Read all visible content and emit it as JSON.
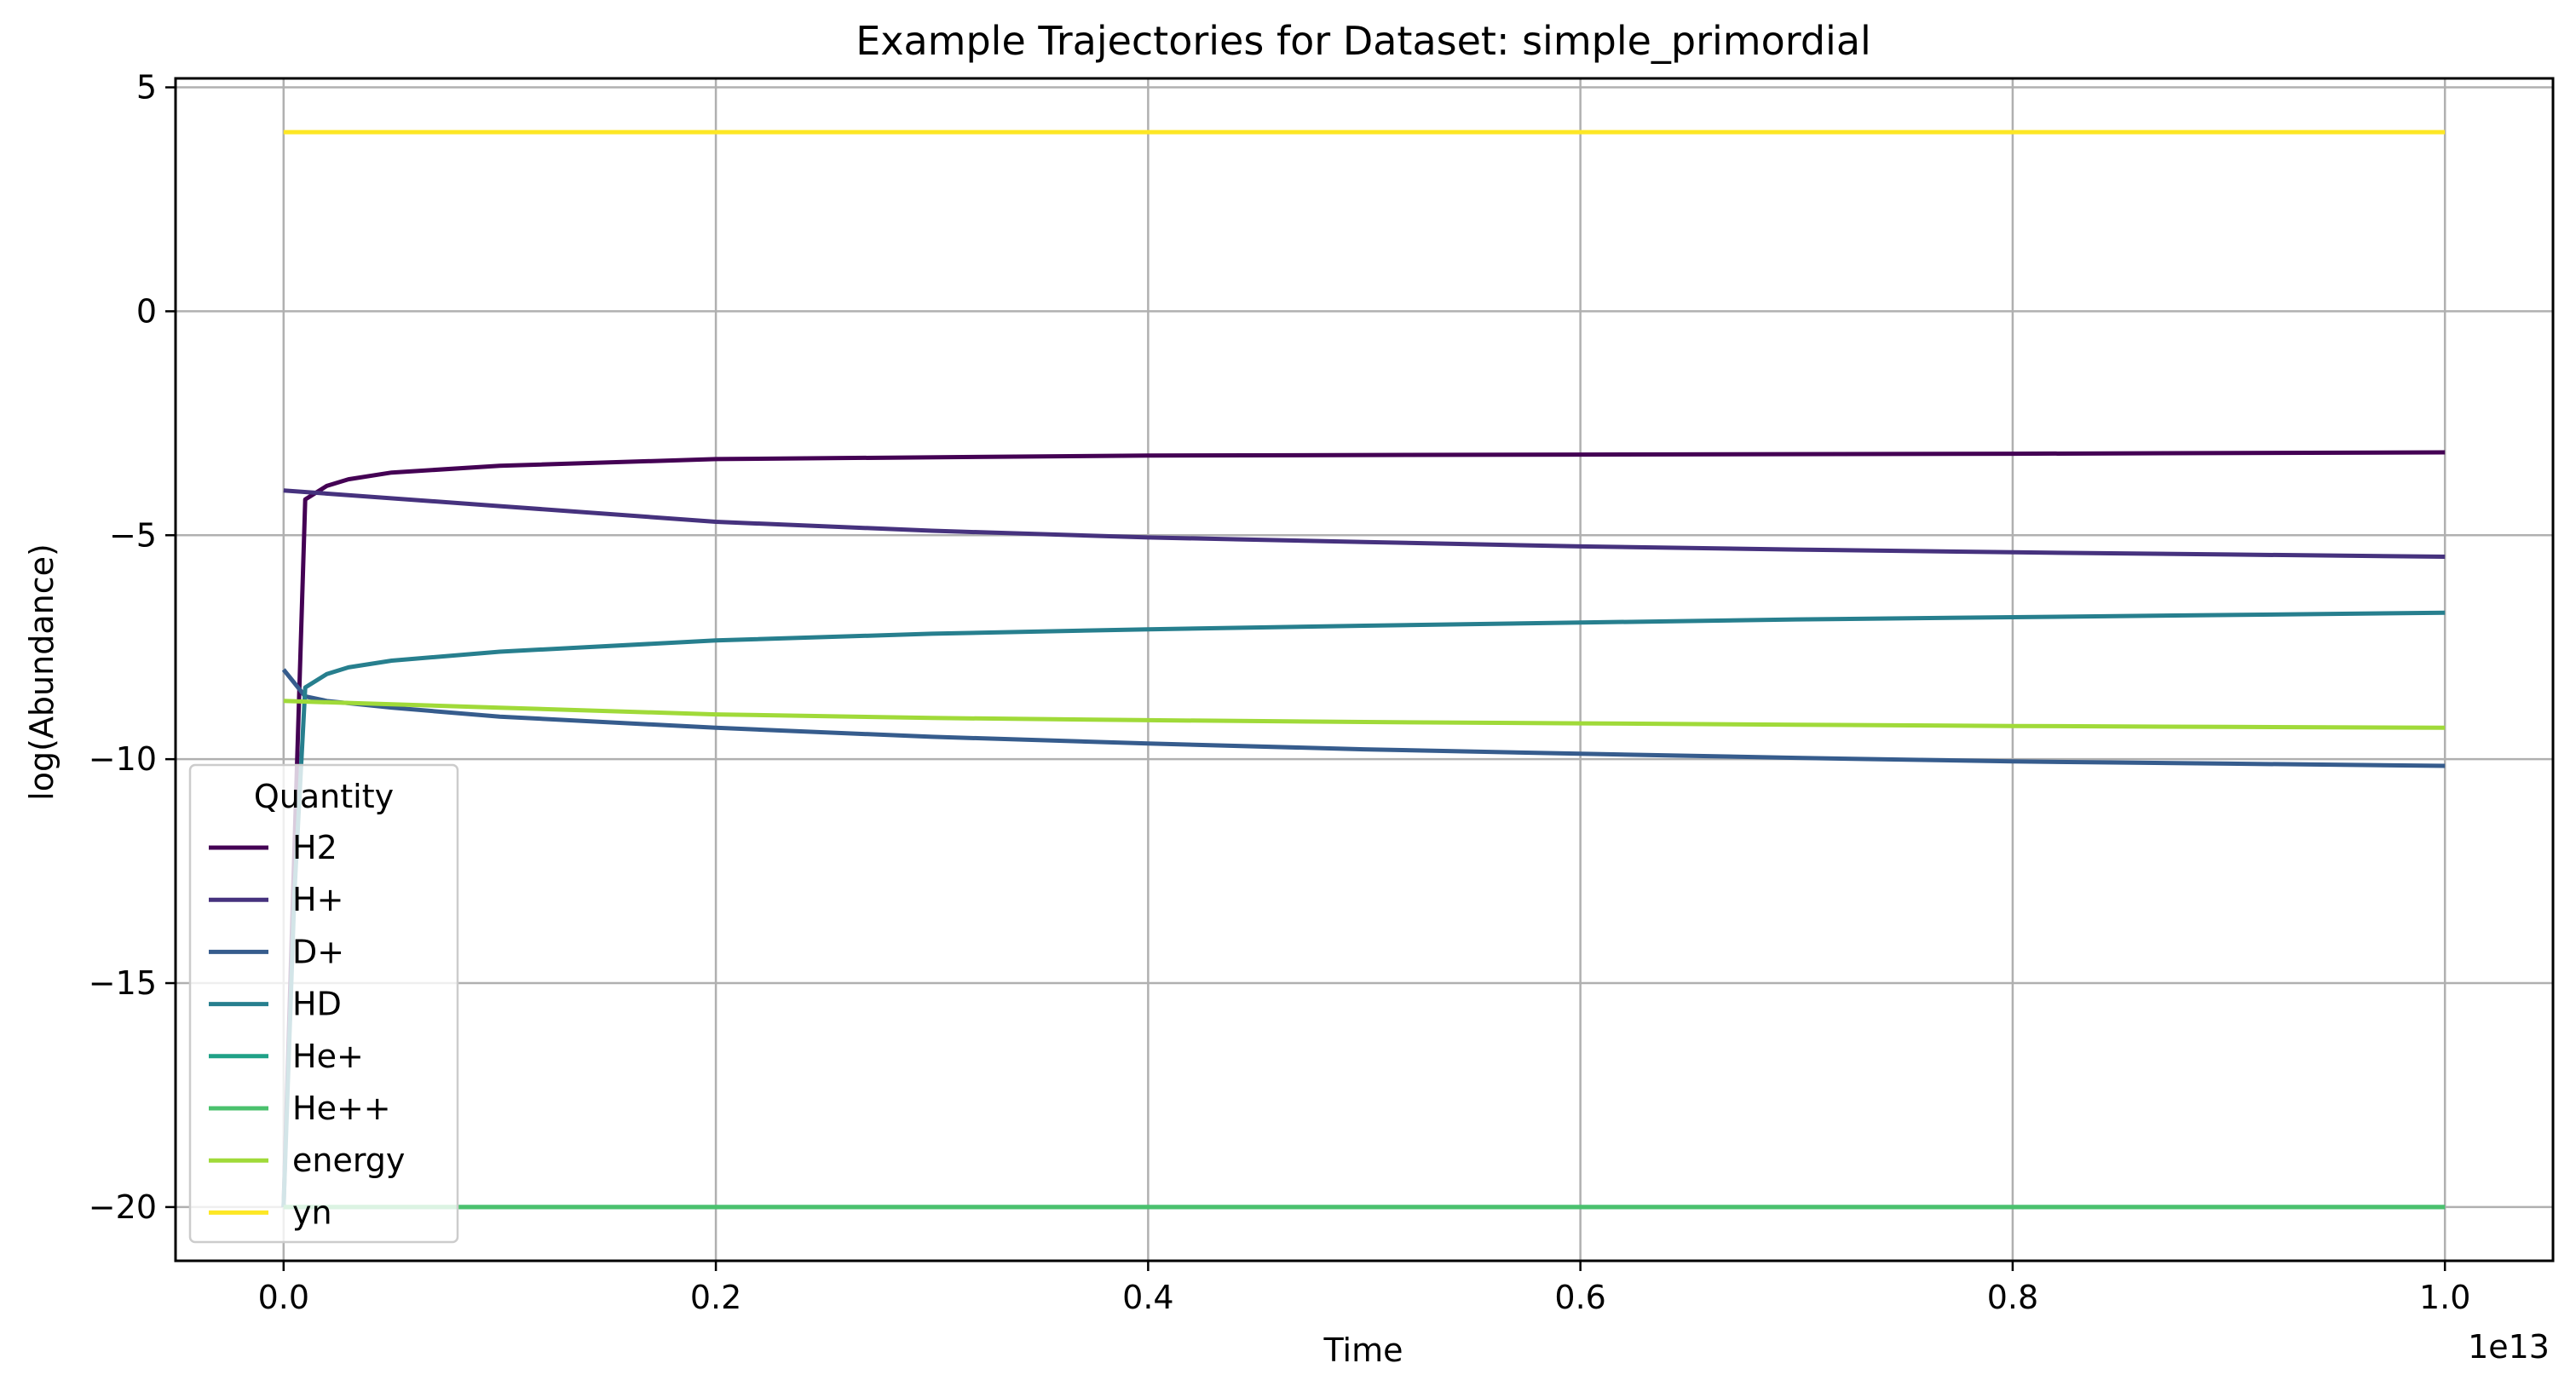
{
  "chart_data": {
    "type": "line",
    "title": "Example Trajectories for Dataset: simple_primordial",
    "xlabel": "Time",
    "ylabel": "log(Abundance)",
    "x_offset_label": "1e13",
    "xlim": [
      -0.05,
      1.05
    ],
    "ylim": [
      -21.2,
      5.2
    ],
    "x_scale_note": "x in units of 1e13",
    "xticks": [
      0.0,
      0.2,
      0.4,
      0.6,
      0.8,
      1.0
    ],
    "xtick_labels": [
      "0.0",
      "0.2",
      "0.4",
      "0.6",
      "0.8",
      "1.0"
    ],
    "yticks": [
      5,
      0,
      -5,
      -10,
      -15,
      -20
    ],
    "ytick_labels": [
      "5",
      "0",
      "−5",
      "−10",
      "−15",
      "−20"
    ],
    "grid": true,
    "legend": {
      "title": "Quantity",
      "placement": "lower-left"
    },
    "series": [
      {
        "name": "H2",
        "color": "#440154",
        "x": [
          0.0,
          0.005,
          0.01,
          0.02,
          0.03,
          0.05,
          0.1,
          0.2,
          0.4,
          0.6,
          0.8,
          1.0
        ],
        "y": [
          -20.0,
          -12.0,
          -4.2,
          -3.9,
          -3.75,
          -3.6,
          -3.45,
          -3.3,
          -3.22,
          -3.2,
          -3.18,
          -3.15
        ]
      },
      {
        "name": "H+",
        "color": "#46327e",
        "x": [
          0.0,
          0.1,
          0.2,
          0.3,
          0.4,
          0.5,
          0.6,
          0.7,
          0.8,
          0.9,
          1.0
        ],
        "y": [
          -4.0,
          -4.35,
          -4.7,
          -4.9,
          -5.05,
          -5.15,
          -5.25,
          -5.32,
          -5.38,
          -5.43,
          -5.48
        ]
      },
      {
        "name": "D+",
        "color": "#365c8d",
        "x": [
          0.0,
          0.01,
          0.02,
          0.05,
          0.1,
          0.2,
          0.3,
          0.4,
          0.5,
          0.6,
          0.7,
          0.8,
          0.9,
          1.0
        ],
        "y": [
          -8.0,
          -8.6,
          -8.7,
          -8.85,
          -9.05,
          -9.3,
          -9.5,
          -9.65,
          -9.78,
          -9.88,
          -9.97,
          -10.05,
          -10.1,
          -10.15
        ]
      },
      {
        "name": "HD",
        "color": "#277f8e",
        "x": [
          0.0,
          0.005,
          0.01,
          0.02,
          0.03,
          0.05,
          0.1,
          0.2,
          0.3,
          0.4,
          0.5,
          0.6,
          0.7,
          0.8,
          0.9,
          1.0
        ],
        "y": [
          -20.0,
          -13.0,
          -8.4,
          -8.1,
          -7.95,
          -7.8,
          -7.6,
          -7.35,
          -7.2,
          -7.1,
          -7.02,
          -6.95,
          -6.88,
          -6.83,
          -6.78,
          -6.73
        ]
      },
      {
        "name": "He+",
        "color": "#1fa187",
        "x": [
          0.0,
          1.0
        ],
        "y": [
          -20.0,
          -20.0
        ]
      },
      {
        "name": "He++",
        "color": "#4ac16d",
        "x": [
          0.0,
          1.0
        ],
        "y": [
          -20.0,
          -20.0
        ]
      },
      {
        "name": "energy",
        "color": "#a0da39",
        "x": [
          0.0,
          0.1,
          0.2,
          0.3,
          0.4,
          0.5,
          0.6,
          0.7,
          0.8,
          0.9,
          1.0
        ],
        "y": [
          -8.7,
          -8.85,
          -9.0,
          -9.08,
          -9.13,
          -9.17,
          -9.2,
          -9.23,
          -9.26,
          -9.28,
          -9.3
        ]
      },
      {
        "name": "yn",
        "color": "#fde725",
        "x": [
          0.0,
          1.0
        ],
        "y": [
          4.0,
          4.0
        ]
      }
    ]
  }
}
